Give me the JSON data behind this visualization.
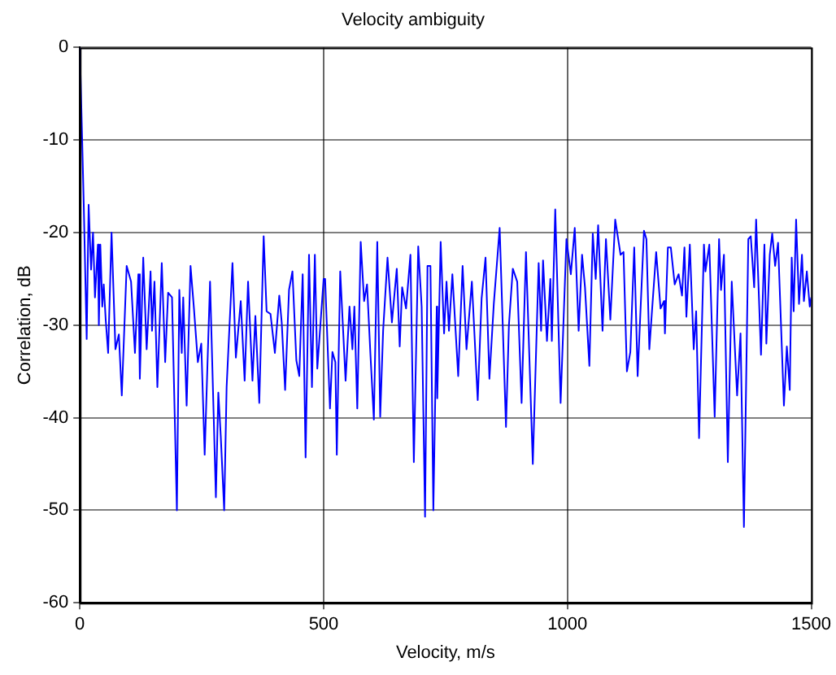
{
  "chart_data": {
    "type": "line",
    "title": "Velocity ambiguity",
    "xlabel": "Velocity, m/s",
    "ylabel": "Correlation, dB",
    "xlim": [
      0,
      1500
    ],
    "xticks": [
      0,
      500,
      1000,
      1500
    ],
    "ylim": [
      -60,
      0
    ],
    "yticks": [
      -60,
      -50,
      -40,
      -30,
      -20,
      -10,
      0
    ],
    "grid": true,
    "legend": false,
    "marker": "none",
    "line_style": "solid",
    "series": [
      {
        "color": "#0000ff",
        "x": [
          0,
          8,
          14,
          18,
          23,
          27,
          31,
          37,
          39,
          42,
          46,
          49,
          53,
          58,
          65,
          73,
          80,
          86,
          96,
          105,
          113,
          120,
          123,
          130,
          137,
          145,
          148,
          153,
          159,
          168,
          175,
          181,
          189,
          199,
          204,
          209,
          212,
          219,
          227,
          234,
          242,
          249,
          256,
          267,
          279,
          284,
          289,
          296,
          301,
          313,
          320,
          330,
          338,
          345,
          354,
          360,
          368,
          377,
          383,
          391,
          400,
          409,
          414,
          421,
          429,
          436,
          444,
          450,
          457,
          463,
          470,
          476,
          482,
          487,
          500,
          503,
          513,
          518,
          524,
          527,
          534,
          545,
          553,
          559,
          563,
          569,
          576,
          583,
          589,
          596,
          603,
          610,
          616,
          622,
          631,
          640,
          650,
          656,
          661,
          669,
          678,
          685,
          694,
          701,
          708,
          713,
          719,
          725,
          732,
          733,
          740,
          747,
          752,
          757,
          764,
          776,
          785,
          793,
          804,
          816,
          824,
          832,
          840,
          849,
          861,
          874,
          880,
          888,
          897,
          906,
          915,
          929,
          941,
          946,
          950,
          958,
          965,
          968,
          975,
          986,
          998,
          1007,
          1015,
          1023,
          1030,
          1036,
          1045,
          1052,
          1058,
          1063,
          1072,
          1079,
          1088,
          1098,
          1109,
          1115,
          1122,
          1129,
          1137,
          1144,
          1157,
          1162,
          1168,
          1173,
          1182,
          1191,
          1198,
          1200,
          1206,
          1212,
          1220,
          1228,
          1235,
          1240,
          1244,
          1251,
          1259,
          1264,
          1270,
          1280,
          1283,
          1291,
          1302,
          1311,
          1315,
          1321,
          1329,
          1337,
          1348,
          1355,
          1362,
          1371,
          1376,
          1383,
          1387,
          1397,
          1404,
          1408,
          1415,
          1420,
          1426,
          1432,
          1444,
          1450,
          1456,
          1460,
          1464,
          1469,
          1475,
          1481,
          1485,
          1491,
          1497,
          1500
        ],
        "values": [
          0,
          -17,
          -31.5,
          -17,
          -24,
          -20,
          -27,
          -21.3,
          -30,
          -21.3,
          -28,
          -25.6,
          -29.4,
          -33,
          -20,
          -32.6,
          -31,
          -37.6,
          -23.6,
          -25.3,
          -33,
          -24.5,
          -35.8,
          -22.7,
          -32.6,
          -24.2,
          -30.6,
          -25.3,
          -36.7,
          -23.3,
          -34,
          -26.5,
          -27,
          -50,
          -26.2,
          -33,
          -27,
          -38.7,
          -23.6,
          -28.2,
          -34,
          -32,
          -44,
          -25.3,
          -48.6,
          -37.3,
          -42,
          -50,
          -36.7,
          -23.3,
          -33.5,
          -27.4,
          -36,
          -25.3,
          -36,
          -29,
          -38.4,
          -20.4,
          -28.5,
          -28.8,
          -33,
          -26.8,
          -29.7,
          -37,
          -26.2,
          -24.2,
          -33.8,
          -35.5,
          -24.5,
          -44.3,
          -22.4,
          -36.7,
          -22.4,
          -34.7,
          -25,
          -25,
          -39,
          -32.9,
          -34,
          -44,
          -24.2,
          -36,
          -28,
          -32.6,
          -28,
          -39,
          -21,
          -27.4,
          -25.6,
          -33.2,
          -40.2,
          -21,
          -39.9,
          -30.6,
          -22.7,
          -29.7,
          -23.9,
          -32.3,
          -25.9,
          -28.2,
          -22.4,
          -44.8,
          -21.5,
          -28,
          -50.7,
          -23.6,
          -23.6,
          -50,
          -28,
          -37.9,
          -21,
          -30.9,
          -25.3,
          -30.6,
          -24.5,
          -35.5,
          -23.6,
          -32.6,
          -25.3,
          -38.1,
          -27.1,
          -22.7,
          -35.8,
          -27.7,
          -19.5,
          -41,
          -30,
          -23.9,
          -25.3,
          -38.4,
          -22.1,
          -45,
          -23.3,
          -30.6,
          -23,
          -31.7,
          -25,
          -31.7,
          -17.5,
          -38.4,
          -20.7,
          -24.5,
          -19.5,
          -30.6,
          -22.4,
          -25.9,
          -34.4,
          -20.1,
          -25,
          -19.2,
          -30.6,
          -20.7,
          -29.4,
          -18.6,
          -22.4,
          -22.1,
          -35,
          -32.9,
          -21.6,
          -35.5,
          -19.8,
          -20.7,
          -32.6,
          -28.8,
          -22.1,
          -28.2,
          -27.4,
          -30.9,
          -21.6,
          -21.6,
          -25.6,
          -24.5,
          -26.8,
          -21.6,
          -29.1,
          -21.3,
          -32.6,
          -28.5,
          -42.2,
          -21.3,
          -24.2,
          -21.3,
          -39.9,
          -20.7,
          -26.2,
          -22.4,
          -44.8,
          -25.3,
          -37.6,
          -30.9,
          -51.8,
          -20.7,
          -20.4,
          -25.9,
          -18.6,
          -33.2,
          -21.3,
          -32,
          -22.4,
          -20.1,
          -23.6,
          -21.1,
          -38.7,
          -32.3,
          -37,
          -22.7,
          -28.5,
          -18.6,
          -27.7,
          -22.4,
          -27.4,
          -24.2,
          -28,
          -27
        ]
      }
    ]
  }
}
